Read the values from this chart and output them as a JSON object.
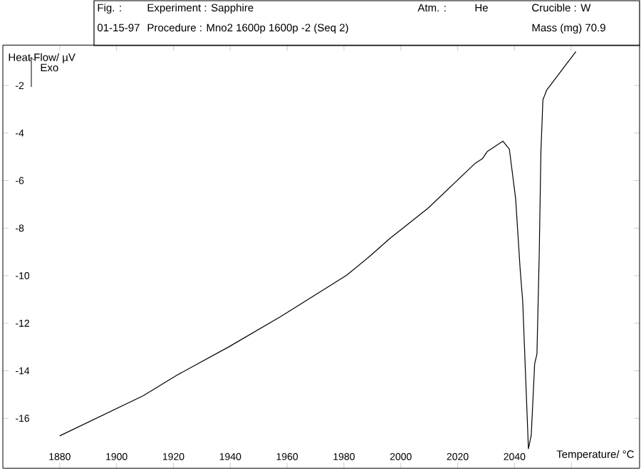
{
  "chart_data": {
    "type": "line",
    "xlabel": "Temperature/ °C",
    "ylabel": "Heat Flow/ µV",
    "annotations": [
      "Fig. :",
      "Experiment : Sapphire",
      "Atm. :",
      "He",
      "Crucible : W",
      "01-15-97",
      "Procedure : Mno2 1600p 1600p -2 (Seq 2)",
      "Mass (mg) 70.9",
      "Exo"
    ],
    "x": [
      1880,
      1909.4,
      1921,
      1939.4,
      1957.7,
      1971,
      1981,
      1989.5,
      1996,
      2009.6,
      2026.2,
      2028.7,
      2030.4,
      2035.9,
      2038.2,
      2040.4,
      2042,
      2042.9,
      2044.9,
      2045.9,
      2047.1,
      2047.9,
      2048.7,
      2049.3,
      2050,
      2051.3,
      2061.6
    ],
    "values": [
      -16.74,
      -15.05,
      -14.2,
      -13.0,
      -11.72,
      -10.73,
      -9.98,
      -9.14,
      -8.45,
      -7.16,
      -5.27,
      -5.08,
      -4.78,
      -4.34,
      -4.68,
      -6.76,
      -9.74,
      -11.1,
      -17.28,
      -16.7,
      -13.7,
      -13.3,
      -9.14,
      -4.78,
      -2.6,
      -2.2,
      -0.57
    ],
    "color": "#000000",
    "xlim": [
      1860,
      2084
    ],
    "ylim": [
      -18.1,
      -0.3
    ],
    "xticks": [
      1880,
      1900,
      1920,
      1940,
      1960,
      1980,
      2000,
      2020,
      2040,
      {
        "value": 2060,
        "label": null
      }
    ],
    "yticks": [
      -16,
      -14,
      -12,
      -10,
      -8,
      -6,
      -4,
      -2
    ],
    "grid": false,
    "marker": "none",
    "line_style": "solid"
  }
}
